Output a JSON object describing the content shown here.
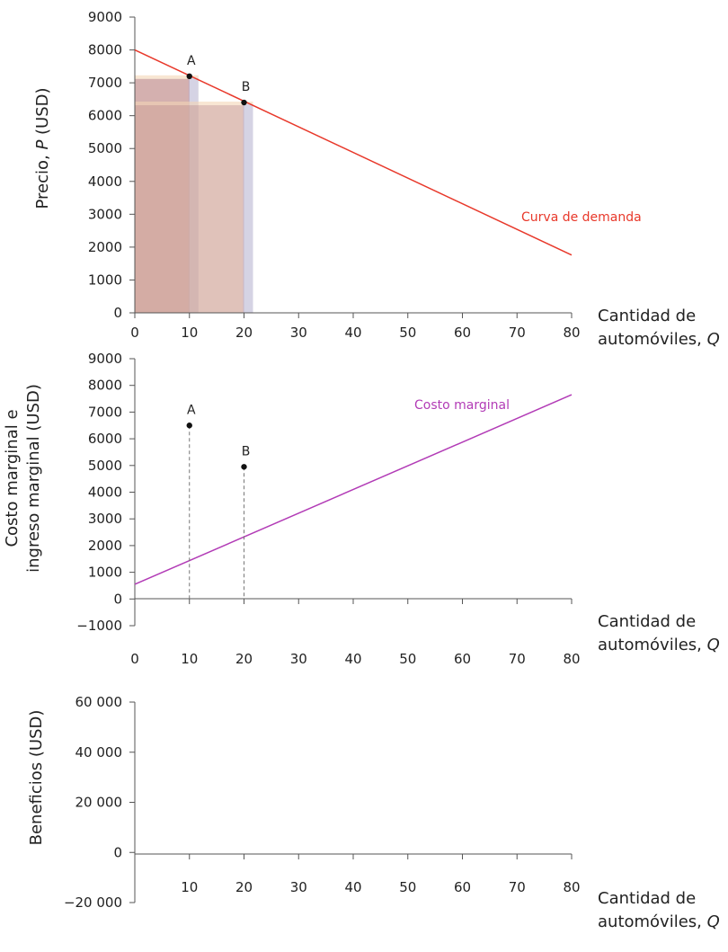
{
  "colors": {
    "demand": "#e8382a",
    "marginal_cost": "#b23bb6",
    "point": "#111111",
    "axis": "#555555",
    "rect_main": "#a96f82",
    "rect_blue": "#c9ccea",
    "rect_orange": "#f3d5b5"
  },
  "chart_data": [
    {
      "type": "line",
      "id": "demand",
      "x_ticks": [
        0,
        10,
        20,
        30,
        40,
        50,
        60,
        70,
        80
      ],
      "y_ticks": [
        0,
        1000,
        2000,
        3000,
        4000,
        5000,
        6000,
        7000,
        8000,
        9000
      ],
      "y_tick_labels": [
        "0",
        "1000",
        "2000",
        "3000",
        "4000",
        "5000",
        "6000",
        "7000",
        "8000",
        "9000"
      ],
      "xlim": [
        0,
        80
      ],
      "ylim": [
        0,
        9000
      ],
      "ylabel_prefix": "Precio, ",
      "ylabel_var": "P",
      "ylabel_suffix": " (USD)",
      "xlabel_line1": "Cantidad de",
      "xlabel_line2_prefix": "automóviles, ",
      "xlabel_var": "Q",
      "series": [
        {
          "name": "Curva de demanda",
          "x": [
            0,
            80
          ],
          "y": [
            8000,
            1760
          ]
        }
      ],
      "points": [
        {
          "label": "A",
          "x": 10,
          "y": 7200
        },
        {
          "label": "B",
          "x": 20,
          "y": 6400
        }
      ],
      "revenue_rects": [
        {
          "q": 10,
          "p": 7200
        },
        {
          "q": 20,
          "p": 6400
        }
      ]
    },
    {
      "type": "line",
      "id": "marginal",
      "x_ticks": [
        0,
        10,
        20,
        30,
        40,
        50,
        60,
        70,
        80
      ],
      "y_ticks": [
        -1000,
        0,
        1000,
        2000,
        3000,
        4000,
        5000,
        6000,
        7000,
        8000,
        9000
      ],
      "y_tick_labels": [
        "−1000",
        "0",
        "1000",
        "2000",
        "3000",
        "4000",
        "5000",
        "6000",
        "7000",
        "8000",
        "9000"
      ],
      "xlim": [
        0,
        80
      ],
      "ylim": [
        -1000,
        9000
      ],
      "ylabel_line1": "Costo marginal e",
      "ylabel_line2": "ingreso marginal (USD)",
      "xlabel_line1": "Cantidad de",
      "xlabel_line2_prefix": "automóviles, ",
      "xlabel_var": "Q",
      "series": [
        {
          "name": "Costo marginal",
          "x": [
            0,
            80
          ],
          "y": [
            550,
            7650
          ]
        }
      ],
      "points": [
        {
          "label": "A",
          "x": 10,
          "y": 6500
        },
        {
          "label": "B",
          "x": 20,
          "y": 4950
        }
      ]
    },
    {
      "type": "line",
      "id": "profit",
      "x_ticks": [
        10,
        20,
        30,
        40,
        50,
        60,
        70,
        80
      ],
      "y_ticks": [
        -20000,
        0,
        20000,
        40000,
        60000
      ],
      "y_tick_labels": [
        "−20 000",
        "0",
        "20 000",
        "40 000",
        "60 000"
      ],
      "xlim": [
        0,
        80
      ],
      "ylim": [
        -20000,
        60000
      ],
      "ylabel": "Beneficios (USD)",
      "xlabel_line1": "Cantidad de",
      "xlabel_line2_prefix": "automóviles, ",
      "xlabel_var": "Q",
      "series": []
    }
  ]
}
